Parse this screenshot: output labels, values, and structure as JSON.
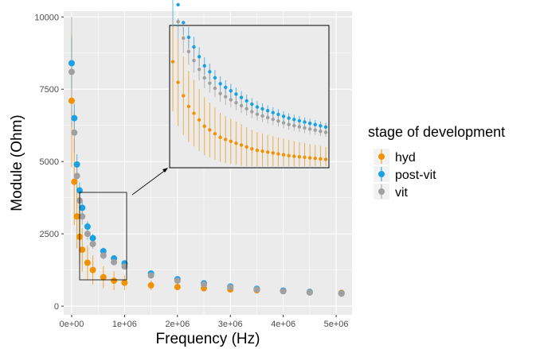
{
  "chart_data": {
    "type": "scatter",
    "title": "",
    "xlabel": "Frequency (Hz)",
    "ylabel": "Module (Ohm)",
    "xlim": [
      -150000,
      5300000
    ],
    "ylim": [
      -300,
      10200
    ],
    "x_ticks": [
      0,
      1000000,
      2000000,
      3000000,
      4000000,
      5000000
    ],
    "x_tick_labels": [
      "0e+00",
      "1e+06",
      "2e+06",
      "3e+06",
      "4e+06",
      "5e+06"
    ],
    "y_ticks": [
      0,
      2500,
      5000,
      7500,
      10000
    ],
    "y_tick_labels": [
      "0",
      "2500",
      "5000",
      "7500",
      "10000"
    ],
    "grid": true,
    "legend": {
      "title": "stage of development",
      "position": "right"
    },
    "colors": {
      "hyd": "#F39200",
      "post-vit": "#1BA1E2",
      "vit": "#A0A0A0"
    },
    "series": [
      {
        "name": "hyd",
        "x": [
          0,
          50000,
          100000,
          150000,
          200000,
          300000,
          400000,
          600000,
          800000,
          1000000,
          1500000,
          2000000,
          2500000,
          3000000,
          3500000,
          4000000,
          4500000,
          5100000
        ],
        "y": [
          7100,
          4300,
          3100,
          2400,
          1950,
          1500,
          1250,
          1000,
          880,
          810,
          720,
          660,
          620,
          580,
          550,
          520,
          490,
          460
        ],
        "err": [
          2300,
          1500,
          1100,
          900,
          750,
          600,
          500,
          380,
          320,
          260,
          170,
          110,
          80,
          60,
          50,
          40,
          35,
          30
        ]
      },
      {
        "name": "post-vit",
        "x": [
          0,
          50000,
          100000,
          150000,
          200000,
          300000,
          400000,
          600000,
          800000,
          1000000,
          1500000,
          2000000,
          2500000,
          3000000,
          3500000,
          4000000,
          4500000,
          5100000
        ],
        "y": [
          8400,
          6500,
          4900,
          4000,
          3400,
          2750,
          2350,
          1900,
          1650,
          1480,
          1130,
          930,
          790,
          680,
          600,
          540,
          490,
          440
        ],
        "err": [
          900,
          500,
          350,
          280,
          230,
          180,
          150,
          120,
          100,
          90,
          70,
          55,
          45,
          40,
          35,
          30,
          28,
          25
        ]
      },
      {
        "name": "vit",
        "x": [
          0,
          50000,
          100000,
          150000,
          200000,
          300000,
          400000,
          600000,
          800000,
          1000000,
          1500000,
          2000000,
          2500000,
          3000000,
          3500000,
          4000000,
          4500000,
          5100000
        ],
        "y": [
          8100,
          6000,
          4500,
          3650,
          3100,
          2500,
          2150,
          1750,
          1520,
          1370,
          1060,
          880,
          750,
          650,
          575,
          515,
          470,
          430
        ],
        "err": [
          1900,
          700,
          450,
          350,
          280,
          210,
          170,
          130,
          110,
          95,
          75,
          60,
          50,
          45,
          40,
          35,
          30,
          28
        ]
      }
    ]
  }
}
